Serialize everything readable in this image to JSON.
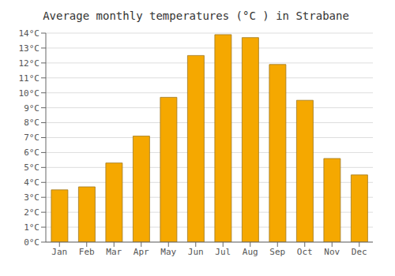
{
  "chart_data": {
    "type": "bar",
    "title": "Average monthly temperatures (°C ) in Strabane",
    "categories": [
      "Jan",
      "Feb",
      "Mar",
      "Apr",
      "May",
      "Jun",
      "Jul",
      "Aug",
      "Sep",
      "Oct",
      "Nov",
      "Dec"
    ],
    "values": [
      3.5,
      3.7,
      5.3,
      7.1,
      9.7,
      12.5,
      13.9,
      13.7,
      11.9,
      9.5,
      5.6,
      4.5
    ],
    "color": "#F5A800",
    "ylim": [
      0,
      14
    ],
    "yticks": [
      {
        "value": 0,
        "label": "0°C"
      },
      {
        "value": 1,
        "label": "1°C"
      },
      {
        "value": 2,
        "label": "2°C"
      },
      {
        "value": 3,
        "label": "3°C"
      },
      {
        "value": 4,
        "label": "4°C"
      },
      {
        "value": 5,
        "label": "5°C"
      },
      {
        "value": 6,
        "label": "6°C"
      },
      {
        "value": 7,
        "label": "7°C"
      },
      {
        "value": 8,
        "label": "8°C"
      },
      {
        "value": 9,
        "label": "9°C"
      },
      {
        "value": 10,
        "label": "10°C"
      },
      {
        "value": 11,
        "label": "11°C"
      },
      {
        "value": 12,
        "label": "12°C"
      },
      {
        "value": 13,
        "label": "13°C"
      },
      {
        "value": 14,
        "label": "14°C"
      }
    ],
    "grid": true
  }
}
